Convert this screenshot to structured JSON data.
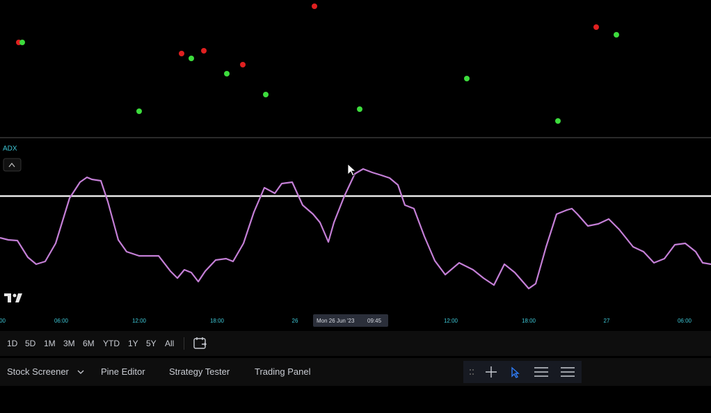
{
  "pane": {
    "indicator": "ADX"
  },
  "time_axis": {
    "labels": [
      "00",
      "06:00",
      "12:00",
      "18:00",
      "26",
      "12:00",
      "18:00",
      "27",
      "06:00"
    ],
    "crosshair": {
      "date": "Mon 26 Jun '23",
      "time": "09:45"
    }
  },
  "ranges": [
    "1D",
    "5D",
    "1M",
    "3M",
    "6M",
    "YTD",
    "1Y",
    "5Y",
    "All"
  ],
  "bottom_tabs": [
    "Stock Screener",
    "Pine Editor",
    "Strategy Tester",
    "Trading Panel"
  ]
}
